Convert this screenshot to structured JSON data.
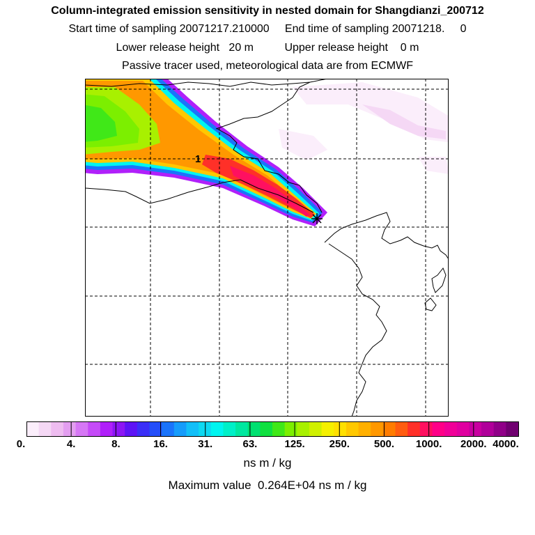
{
  "header": {
    "title": "Column-integrated emission sensitivity in nested domain for Shangdianzi_200712",
    "sampling_line": "Start time of sampling 20071217.210000     End time of sampling 20071218.     0",
    "release_line": "Lower release height   20 m          Upper release height    0 m",
    "tracer_line": "Passive tracer used, meteorological data are from ECMWF"
  },
  "map": {
    "station_marker": "star-icon",
    "label_1": "1"
  },
  "colorbar": {
    "tick_labels": [
      "0.",
      "4.",
      "8.",
      "16.",
      "31.",
      "63.",
      "125.",
      "250.",
      "500.",
      "1000.",
      "2000.",
      "4000."
    ],
    "colors": [
      "#ffffff",
      "#fbeefb",
      "#f5d8f5",
      "#eebcf0",
      "#e39ef0",
      "#d677f5",
      "#c54bf8",
      "#b020fa",
      "#8c16f4",
      "#5d14f5",
      "#3b2ff7",
      "#244ef9",
      "#1a74fb",
      "#169cfb",
      "#13bff8",
      "#0fd9f2",
      "#00f5f0",
      "#00f0c8",
      "#00e8a0",
      "#00e071",
      "#10e040",
      "#40e818",
      "#7cef00",
      "#a8f000",
      "#d0f000",
      "#f5f000",
      "#ffe000",
      "#ffc800",
      "#ffb000",
      "#ff9800",
      "#ff7c00",
      "#ff5c10",
      "#ff3028",
      "#ff1060",
      "#ff0088",
      "#f00098",
      "#e000a0",
      "#c800a0",
      "#b0009a",
      "#900088",
      "#700070"
    ],
    "units": "ns m / kg",
    "max_value_text": "Maximum value  0.264E+04 ns m / kg"
  }
}
